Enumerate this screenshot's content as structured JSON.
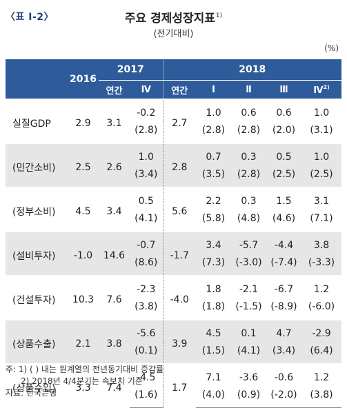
{
  "header": {
    "tag": "〈표 Ⅰ-2〉",
    "title": "주요 경제성장지표",
    "title_note": "1)",
    "subtitle": "(전기대비)",
    "unit": "(%)"
  },
  "table": {
    "columns": {
      "y2016": "2016",
      "y2017": "2017",
      "y2018": "2018",
      "annual_2017": "연간",
      "q4_2017": "Ⅳ",
      "annual_2018": "연간",
      "q1_2018": "Ⅰ",
      "q2_2018": "Ⅱ",
      "q3_2018": "Ⅲ",
      "q4_2018": "Ⅳ",
      "q4_2018_note": "2)"
    },
    "rows": [
      {
        "label": "실질GDP",
        "v2016": "2.9",
        "a2017": "3.1",
        "q4_2017": "-0.2",
        "q4_2017_yoy": "(2.8)",
        "a2018": "2.7",
        "q1": "1.0",
        "q1_yoy": "(2.8)",
        "q2": "0.6",
        "q2_yoy": "(2.8)",
        "q3": "0.6",
        "q3_yoy": "(2.0)",
        "q4": "1.0",
        "q4_yoy": "(3.1)"
      },
      {
        "label": "(민간소비)",
        "v2016": "2.5",
        "a2017": "2.6",
        "q4_2017": "1.0",
        "q4_2017_yoy": "(3.4)",
        "a2018": "2.8",
        "q1": "0.7",
        "q1_yoy": "(3.5)",
        "q2": "0.3",
        "q2_yoy": "(2.8)",
        "q3": "0.5",
        "q3_yoy": "(2.5)",
        "q4": "1.0",
        "q4_yoy": "(2.5)"
      },
      {
        "label": "(정부소비)",
        "v2016": "4.5",
        "a2017": "3.4",
        "q4_2017": "0.5",
        "q4_2017_yoy": "(4.1)",
        "a2018": "5.6",
        "q1": "2.2",
        "q1_yoy": "(5.8)",
        "q2": "0.3",
        "q2_yoy": "(4.8)",
        "q3": "1.5",
        "q3_yoy": "(4.6)",
        "q4": "3.1",
        "q4_yoy": "(7.1)"
      },
      {
        "label": "(설비투자)",
        "v2016": "-1.0",
        "a2017": "14.6",
        "q4_2017": "-0.7",
        "q4_2017_yoy": "(8.6)",
        "a2018": "-1.7",
        "q1": "3.4",
        "q1_yoy": "(7.3)",
        "q2": "-5.7",
        "q2_yoy": "(-3.0)",
        "q3": "-4.4",
        "q3_yoy": "(-7.4)",
        "q4": "3.8",
        "q4_yoy": "(-3.3)"
      },
      {
        "label": "(건설투자)",
        "v2016": "10.3",
        "a2017": "7.6",
        "q4_2017": "-2.3",
        "q4_2017_yoy": "(3.8)",
        "a2018": "-4.0",
        "q1": "1.8",
        "q1_yoy": "(1.8)",
        "q2": "-2.1",
        "q2_yoy": "(-1.5)",
        "q3": "-6.7",
        "q3_yoy": "(-8.9)",
        "q4": "1.2",
        "q4_yoy": "(-6.0)"
      },
      {
        "label": "(상품수출)",
        "v2016": "2.1",
        "a2017": "3.8",
        "q4_2017": "-5.6",
        "q4_2017_yoy": "(0.1)",
        "a2018": "3.9",
        "q1": "4.5",
        "q1_yoy": "(1.5)",
        "q2": "0.1",
        "q2_yoy": "(4.1)",
        "q3": "4.7",
        "q3_yoy": "(3.4)",
        "q4": "-2.9",
        "q4_yoy": "(6.4)"
      },
      {
        "label": "(상품수입)",
        "v2016": "3.3",
        "a2017": "7.4",
        "q4_2017": "-4.5",
        "q4_2017_yoy": "(1.6)",
        "a2018": "1.7",
        "q1": "7.1",
        "q1_yoy": "(4.0)",
        "q2": "-3.6",
        "q2_yoy": "(0.9)",
        "q3": "-0.6",
        "q3_yoy": "(-2.0)",
        "q4": "1.2",
        "q4_yoy": "(3.8)"
      }
    ]
  },
  "notes": {
    "note1": "주: 1) (  ) 내는 원계열의 전년동기대비 증감률",
    "note2": "2) 2018년 4/4분기는 속보치 기준",
    "source": "자료: 한국은행"
  }
}
